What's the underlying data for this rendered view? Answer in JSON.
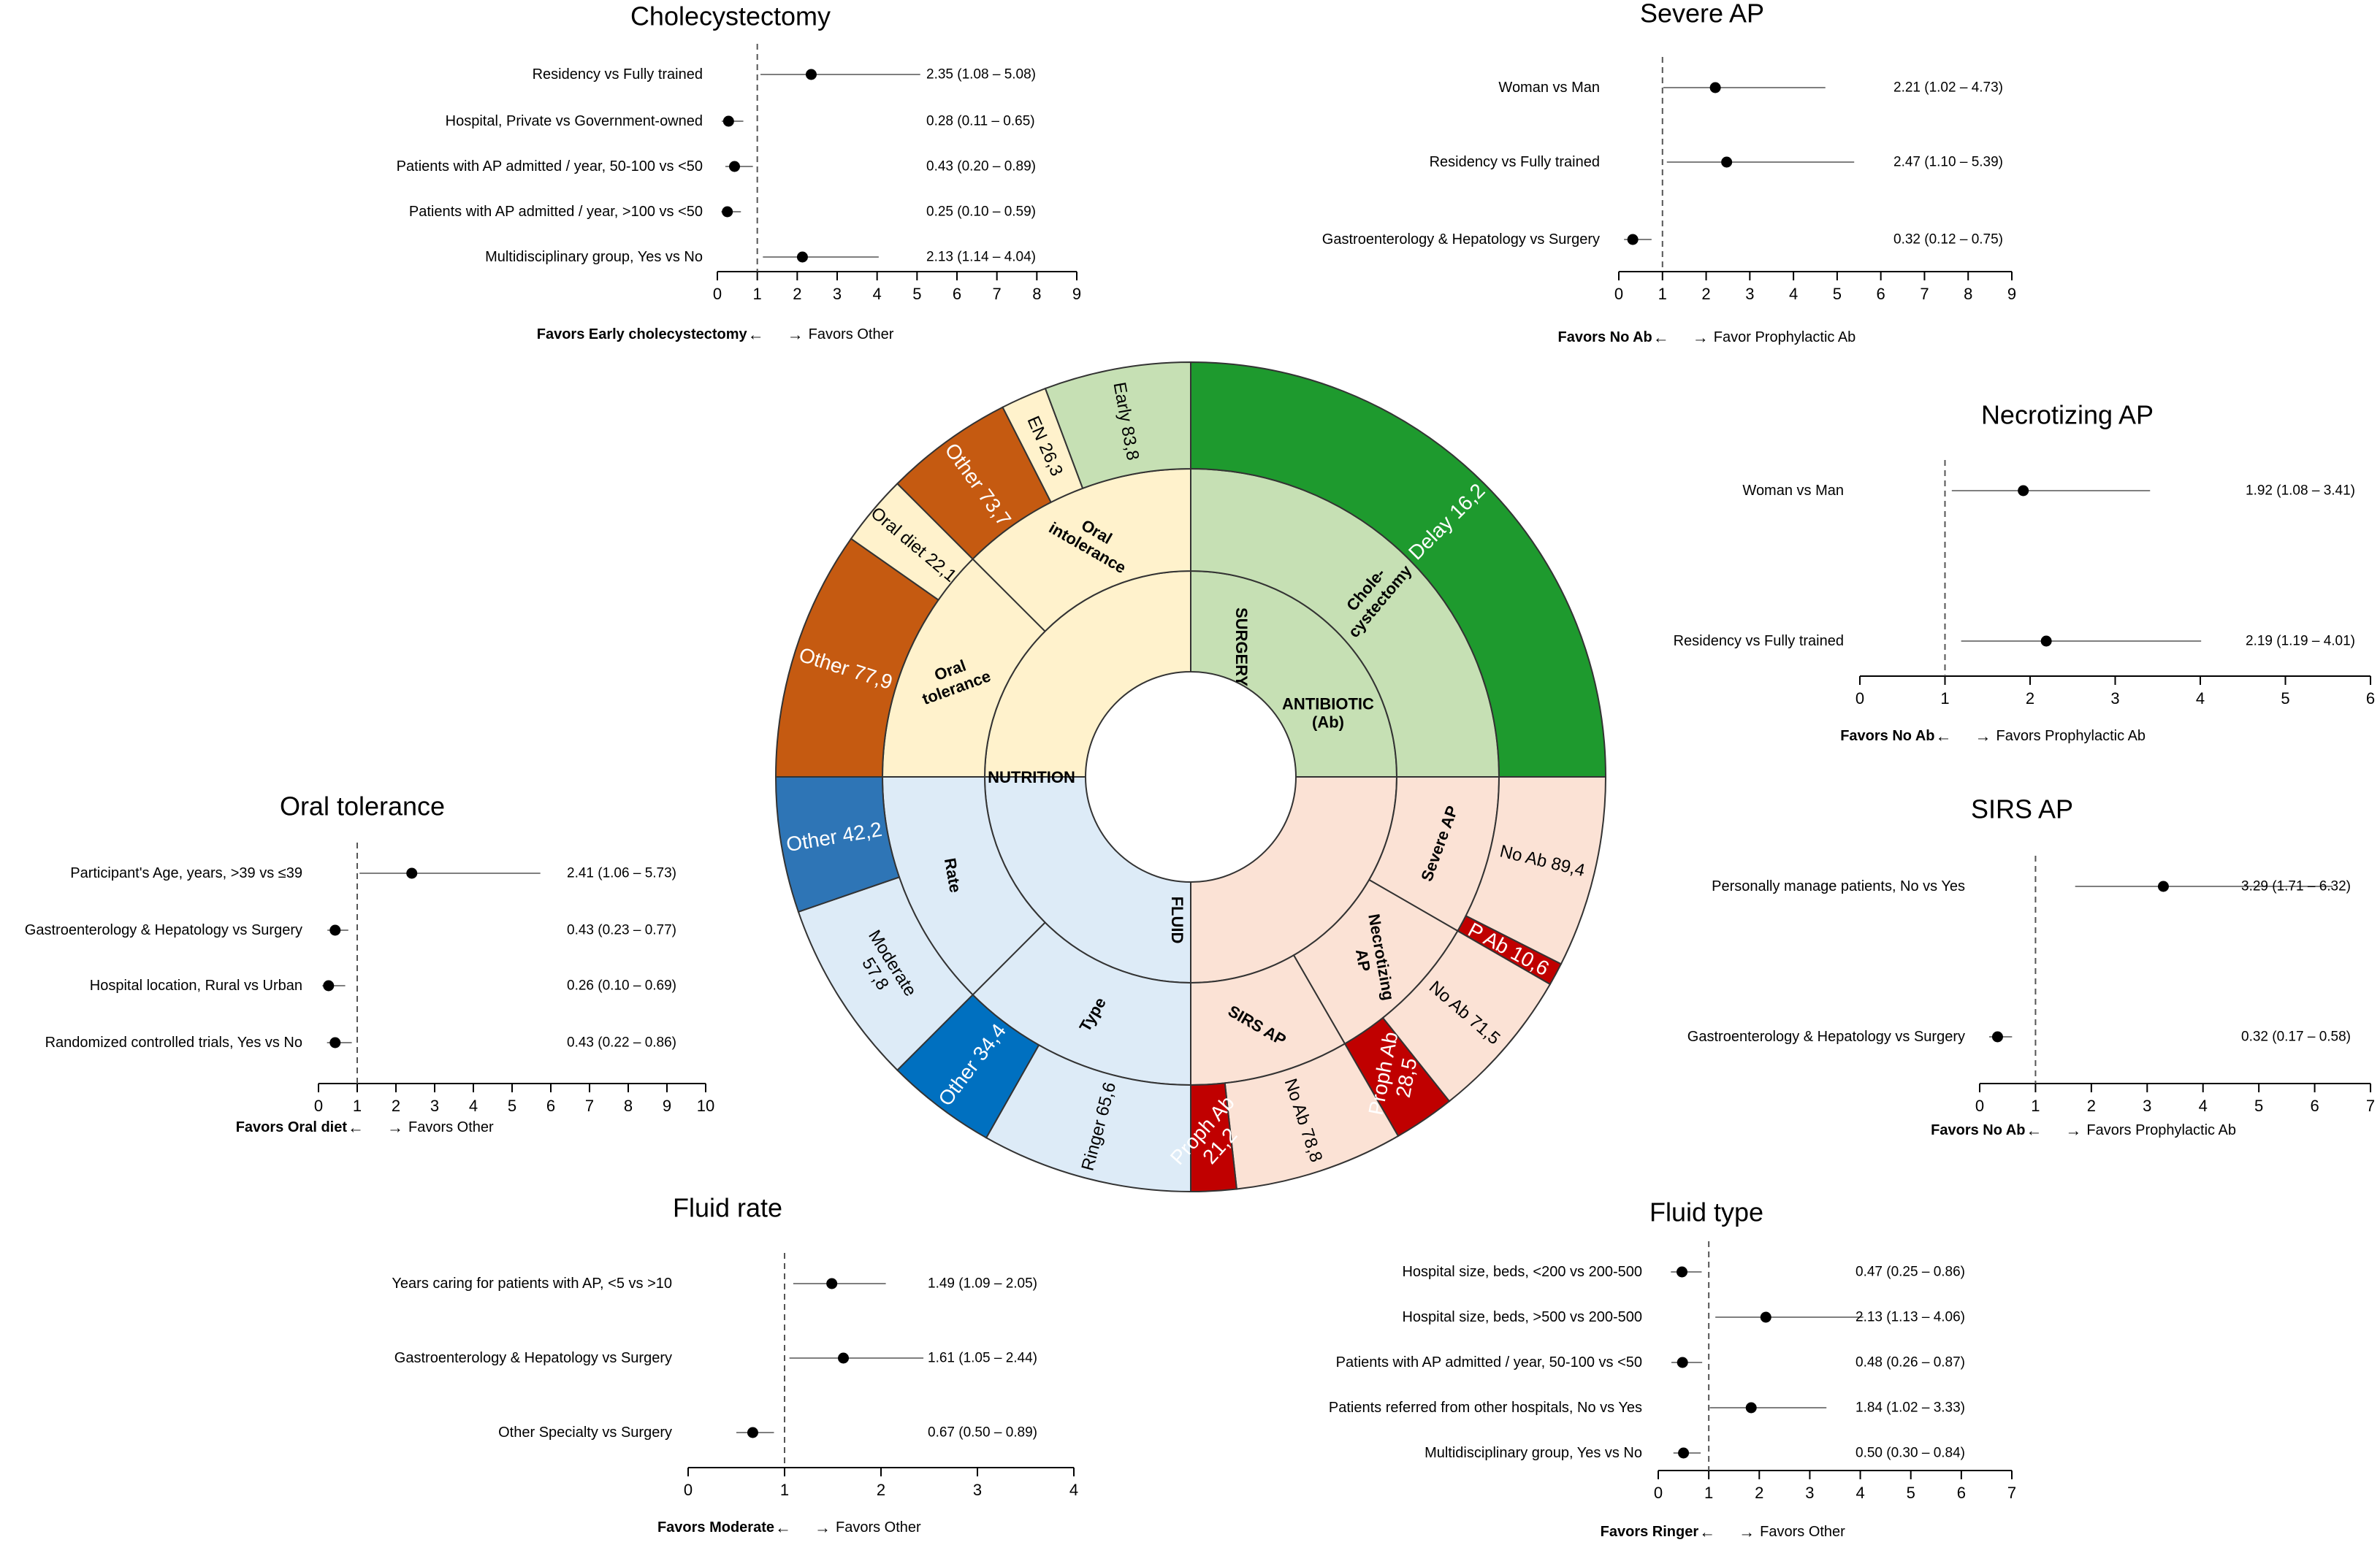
{
  "chart_data": [
    {
      "type": "sunburst",
      "inner": [
        {
          "label": "SURGERY",
          "color": "#c6e0b4"
        },
        {
          "label": "ANTIBIOTIC\n(Ab)",
          "color": "#fbe2d5"
        },
        {
          "label": "FLUID",
          "color": "#ddebf7"
        },
        {
          "label": "NUTRITION",
          "color": "#fff2cc"
        }
      ],
      "middle": [
        {
          "label": "Chole-\ncystectomy",
          "color": "#c6e0b4"
        },
        {
          "label": "Severe AP",
          "color": "#fbe2d5"
        },
        {
          "label": "Necrotizing\nAP",
          "color": "#fbe2d5"
        },
        {
          "label": "SIRS AP",
          "color": "#fbe2d5"
        },
        {
          "label": "Type",
          "color": "#ddebf7"
        },
        {
          "label": "Rate",
          "color": "#ddebf7"
        },
        {
          "label": "Oral\ntolerance",
          "color": "#fff2cc"
        },
        {
          "label": "Oral\nintolerance",
          "color": "#fff2cc"
        }
      ],
      "outer": [
        {
          "label": "Delay 16,2",
          "value": 16.2,
          "color": "#1e9a2e",
          "text_color": "#ffffff"
        },
        {
          "label": "No Ab 89,4",
          "value": 89.4,
          "color": "#fbe2d5",
          "text_color": "#000000"
        },
        {
          "label": "P Ab 10,6",
          "value": 10.6,
          "color": "#c00000",
          "text_color": "#ffffff"
        },
        {
          "label": "No Ab 71,5",
          "value": 71.5,
          "color": "#fbe2d5",
          "text_color": "#000000"
        },
        {
          "label": "Proph Ab\n28,5",
          "value": 28.5,
          "color": "#c00000",
          "text_color": "#ffffff"
        },
        {
          "label": "No Ab 78,8",
          "value": 78.8,
          "color": "#fbe2d5",
          "text_color": "#000000"
        },
        {
          "label": "Proph Ab\n21,2",
          "value": 21.2,
          "color": "#c00000",
          "text_color": "#ffffff"
        },
        {
          "label": "Ringer 65,6",
          "value": 65.6,
          "color": "#ddebf7",
          "text_color": "#000000"
        },
        {
          "label": "Other 34,4",
          "value": 34.4,
          "color": "#0070c0",
          "text_color": "#ffffff"
        },
        {
          "label": "Moderate\n57,8",
          "value": 57.8,
          "color": "#ddebf7",
          "text_color": "#000000"
        },
        {
          "label": "Other 42,2",
          "value": 42.2,
          "color": "#2e75b6",
          "text_color": "#ffffff"
        },
        {
          "label": "Other 77,9",
          "value": 77.9,
          "color": "#c55a11",
          "text_color": "#ffffff"
        },
        {
          "label": "Oral diet 22,1",
          "value": 22.1,
          "color": "#fff2cc",
          "text_color": "#000000"
        },
        {
          "label": "Other 73,7",
          "value": 73.7,
          "color": "#c55a11",
          "text_color": "#ffffff"
        },
        {
          "label": "EN 26,3",
          "value": 26.3,
          "color": "#fff2cc",
          "text_color": "#000000"
        },
        {
          "label": "Early 83,8",
          "value": 83.8,
          "color": "#c6e0b4",
          "text_color": "#000000"
        }
      ]
    },
    {
      "type": "forest",
      "title": "Cholecystectomy",
      "xlim": [
        0,
        9
      ],
      "ticks": [
        0,
        1,
        2,
        3,
        4,
        5,
        6,
        7,
        8,
        9
      ],
      "ref": 1,
      "favors_left": "Favors Early cholecystectomy",
      "favors_right": "Favors Other",
      "rows": [
        {
          "label": "Residency vs Fully trained",
          "or": 2.35,
          "lo": 1.08,
          "hi": 5.08,
          "text": "2.35 (1.08 – 5.08)"
        },
        {
          "label": "Hospital, Private vs Government-owned",
          "or": 0.28,
          "lo": 0.11,
          "hi": 0.65,
          "text": "0.28 (0.11 – 0.65)"
        },
        {
          "label": "Patients with AP admitted / year, 50-100 vs <50",
          "or": 0.43,
          "lo": 0.2,
          "hi": 0.89,
          "text": "0.43 (0.20 – 0.89)"
        },
        {
          "label": "Patients with AP admitted / year, >100 vs <50",
          "or": 0.25,
          "lo": 0.1,
          "hi": 0.59,
          "text": "0.25 (0.10 – 0.59)"
        },
        {
          "label": "Multidisciplinary group, Yes vs No",
          "or": 2.13,
          "lo": 1.14,
          "hi": 4.04,
          "text": "2.13 (1.14 – 4.04)"
        }
      ]
    },
    {
      "type": "forest",
      "title": "Severe AP",
      "xlim": [
        0,
        9
      ],
      "ticks": [
        0,
        1,
        2,
        3,
        4,
        5,
        6,
        7,
        8,
        9
      ],
      "ref": 1,
      "favors_left": "Favors No Ab",
      "favors_right": "Favor Prophylactic Ab",
      "rows": [
        {
          "label": "Woman vs Man",
          "or": 2.21,
          "lo": 1.02,
          "hi": 4.73,
          "text": "2.21 (1.02 – 4.73)"
        },
        {
          "label": "Residency vs Fully trained",
          "or": 2.47,
          "lo": 1.1,
          "hi": 5.39,
          "text": "2.47 (1.10 – 5.39)"
        },
        {
          "label": "Gastroenterology & Hepatology vs Surgery",
          "or": 0.32,
          "lo": 0.12,
          "hi": 0.75,
          "text": "0.32 (0.12 – 0.75)"
        }
      ]
    },
    {
      "type": "forest",
      "title": "Necrotizing AP",
      "xlim": [
        0,
        6
      ],
      "ticks": [
        0,
        1,
        2,
        3,
        4,
        5,
        6
      ],
      "ref": 1,
      "favors_left": "Favors No Ab",
      "favors_right": "Favors Prophylactic Ab",
      "rows": [
        {
          "label": "Woman vs Man",
          "or": 1.92,
          "lo": 1.08,
          "hi": 3.41,
          "text": "1.92 (1.08 – 3.41)"
        },
        {
          "label": "Residency vs Fully trained",
          "or": 2.19,
          "lo": 1.19,
          "hi": 4.01,
          "text": "2.19 (1.19 – 4.01)"
        }
      ]
    },
    {
      "type": "forest",
      "title": "SIRS AP",
      "xlim": [
        0,
        7
      ],
      "ticks": [
        0,
        1,
        2,
        3,
        4,
        5,
        6,
        7
      ],
      "ref": 1,
      "favors_left": "Favors No Ab",
      "favors_right": "Favors Prophylactic Ab",
      "rows": [
        {
          "label": "Personally manage patients, No vs Yes",
          "or": 3.29,
          "lo": 1.71,
          "hi": 6.32,
          "text": "3.29 (1.71 – 6.32)"
        },
        {
          "label": "Gastroenterology & Hepatology vs Surgery",
          "or": 0.32,
          "lo": 0.17,
          "hi": 0.58,
          "text": "0.32 (0.17 – 0.58)"
        }
      ]
    },
    {
      "type": "forest",
      "title": "Oral tolerance",
      "xlim": [
        0,
        10
      ],
      "ticks": [
        0,
        1,
        2,
        3,
        4,
        5,
        6,
        7,
        8,
        9,
        10
      ],
      "ref": 1,
      "favors_left": "Favors Oral diet",
      "favors_right": "Favors Other",
      "rows": [
        {
          "label": "Participant's Age, years, >39 vs ≤39",
          "or": 2.41,
          "lo": 1.06,
          "hi": 5.73,
          "text": "2.41 (1.06 – 5.73)"
        },
        {
          "label": "Gastroenterology & Hepatology vs Surgery",
          "or": 0.43,
          "lo": 0.23,
          "hi": 0.77,
          "text": "0.43 (0.23 – 0.77)"
        },
        {
          "label": "Hospital location, Rural vs Urban",
          "or": 0.26,
          "lo": 0.1,
          "hi": 0.69,
          "text": "0.26 (0.10 – 0.69)"
        },
        {
          "label": "Randomized controlled trials, Yes vs No",
          "or": 0.43,
          "lo": 0.22,
          "hi": 0.86,
          "text": "0.43 (0.22 – 0.86)"
        }
      ]
    },
    {
      "type": "forest",
      "title": "Fluid rate",
      "xlim": [
        0,
        4
      ],
      "ticks": [
        0,
        1,
        2,
        3,
        4
      ],
      "ref": 1,
      "favors_left": "Favors Moderate",
      "favors_right": "Favors Other",
      "rows": [
        {
          "label": "Years caring for patients with AP, <5 vs >10",
          "or": 1.49,
          "lo": 1.09,
          "hi": 2.05,
          "text": "1.49 (1.09 – 2.05)"
        },
        {
          "label": "Gastroenterology & Hepatology vs Surgery",
          "or": 1.61,
          "lo": 1.05,
          "hi": 2.44,
          "text": "1.61 (1.05 – 2.44)"
        },
        {
          "label": "Other Specialty vs Surgery",
          "or": 0.67,
          "lo": 0.5,
          "hi": 0.89,
          "text": "0.67 (0.50 – 0.89)"
        }
      ]
    },
    {
      "type": "forest",
      "title": "Fluid type",
      "xlim": [
        0,
        7
      ],
      "ticks": [
        0,
        1,
        2,
        3,
        4,
        5,
        6,
        7
      ],
      "ref": 1,
      "favors_left": "Favors Ringer",
      "favors_right": "Favors Other",
      "rows": [
        {
          "label": "Hospital size, beds, <200 vs 200-500",
          "or": 0.47,
          "lo": 0.25,
          "hi": 0.86,
          "text": "0.47 (0.25 – 0.86)"
        },
        {
          "label": "Hospital size, beds, >500 vs 200-500",
          "or": 2.13,
          "lo": 1.13,
          "hi": 4.06,
          "text": "2.13 (1.13 – 4.06)"
        },
        {
          "label": "Patients with AP admitted / year, 50-100 vs <50",
          "or": 0.48,
          "lo": 0.26,
          "hi": 0.87,
          "text": "0.48 (0.26 – 0.87)"
        },
        {
          "label": "Patients referred from other hospitals, No vs Yes",
          "or": 1.84,
          "lo": 1.02,
          "hi": 3.33,
          "text": "1.84 (1.02 – 3.33)"
        },
        {
          "label": "Multidisciplinary group, Yes vs No",
          "or": 0.5,
          "lo": 0.3,
          "hi": 0.84,
          "text": "0.50 (0.30 – 0.84)"
        }
      ]
    }
  ]
}
